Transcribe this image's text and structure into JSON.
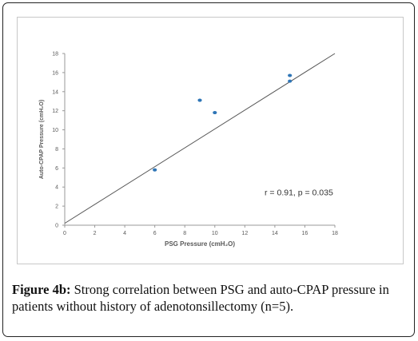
{
  "caption": {
    "label": "Figure 4b:",
    "text": " Strong correlation between PSG and auto-CPAP pressure in patients without history of adenotonsillectomy (n=5)."
  },
  "chart_data": {
    "type": "scatter",
    "title": "",
    "xlabel": "PSG Pressure (cmH₂O)",
    "ylabel": "Auto-CPAP Pressure (cmH₂O)",
    "xlim": [
      0,
      18
    ],
    "ylim": [
      0,
      18
    ],
    "xticks": [
      0,
      2,
      4,
      6,
      8,
      10,
      12,
      14,
      16,
      18
    ],
    "yticks": [
      0,
      2,
      4,
      6,
      8,
      10,
      12,
      14,
      16,
      18
    ],
    "grid": false,
    "points": [
      {
        "x": 6,
        "y": 5.8
      },
      {
        "x": 9,
        "y": 13.1
      },
      {
        "x": 10,
        "y": 11.8
      },
      {
        "x": 15,
        "y": 15.1
      },
      {
        "x": 15,
        "y": 15.7
      }
    ],
    "trendline": {
      "x": [
        0,
        18
      ],
      "y": [
        0.2,
        18
      ]
    },
    "annotation": "r = 0.91, p = 0.035",
    "colors": {
      "points": "#2e75b6",
      "trendline": "#555555",
      "axis": "#999999",
      "text": "#595959"
    }
  }
}
